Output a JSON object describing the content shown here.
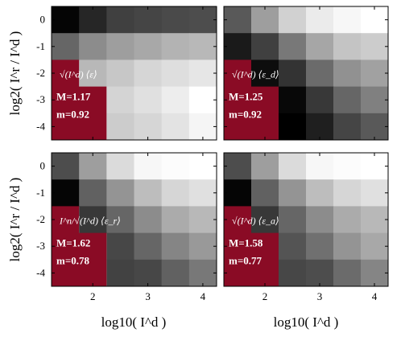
{
  "colors": {
    "overlay": "#8a0b25",
    "overlay_text": "#ffffff",
    "axis": "#000000",
    "background": "#ffffff"
  },
  "shared_axes": {
    "xlabel": "log10( I^d )",
    "ylabel": "log2( I^r / I^d )",
    "x_ticks": [
      "2",
      "3",
      "4"
    ],
    "y_ticks": [
      "0",
      "-1",
      "-2",
      "-3",
      "-4"
    ]
  },
  "chart_data": [
    {
      "type": "heatmap",
      "panel": "top-left",
      "x": [
        1.5,
        2.0,
        2.5,
        3.0,
        3.5,
        4.0
      ],
      "y": [
        0,
        -1,
        -2,
        -3,
        -4
      ],
      "z": [
        [
          0.02,
          0.15,
          0.25,
          0.27,
          0.29,
          0.3
        ],
        [
          0.4,
          0.55,
          0.62,
          0.66,
          0.7,
          0.72
        ],
        [
          null,
          0.72,
          0.78,
          0.84,
          0.87,
          0.9
        ],
        [
          null,
          null,
          0.83,
          0.88,
          0.93,
          1.0
        ],
        [
          null,
          null,
          0.8,
          0.84,
          0.89,
          0.96
        ]
      ],
      "annotation": {
        "formula": "√(I^d) ⟨ε⟩",
        "M": "M=1.17",
        "m": "m=0.92"
      }
    },
    {
      "type": "heatmap",
      "panel": "top-right",
      "x": [
        1.5,
        2.0,
        2.5,
        3.0,
        3.5,
        4.0
      ],
      "y": [
        0,
        -1,
        -2,
        -3,
        -4
      ],
      "z": [
        [
          0.35,
          0.62,
          0.82,
          0.92,
          0.97,
          1.0
        ],
        [
          0.1,
          0.25,
          0.47,
          0.65,
          0.77,
          0.8
        ],
        [
          null,
          0.05,
          0.2,
          0.42,
          0.57,
          0.63
        ],
        [
          null,
          null,
          0.03,
          0.22,
          0.4,
          0.5
        ],
        [
          null,
          null,
          0.0,
          0.12,
          0.27,
          0.35
        ]
      ],
      "annotation": {
        "formula": "√(I^d) ⟨ε_d⟩",
        "M": "M=1.25",
        "m": "m=0.92"
      }
    },
    {
      "type": "heatmap",
      "panel": "bottom-left",
      "x": [
        1.5,
        2.0,
        2.5,
        3.0,
        3.5,
        4.0
      ],
      "y": [
        0,
        -1,
        -2,
        -3,
        -4
      ],
      "z": [
        [
          0.3,
          0.62,
          0.86,
          0.97,
          0.99,
          1.0
        ],
        [
          0.02,
          0.38,
          0.58,
          0.74,
          0.84,
          0.88
        ],
        [
          null,
          0.22,
          0.4,
          0.55,
          0.67,
          0.72
        ],
        [
          null,
          null,
          0.28,
          0.4,
          0.52,
          0.6
        ],
        [
          null,
          null,
          0.26,
          0.28,
          0.38,
          0.47
        ]
      ],
      "annotation": {
        "formula": "I^n/√(I^d) ⟨ε_r⟩",
        "M": "M=1.62",
        "m": "m=0.78"
      }
    },
    {
      "type": "heatmap",
      "panel": "bottom-right",
      "x": [
        1.5,
        2.0,
        2.5,
        3.0,
        3.5,
        4.0
      ],
      "y": [
        0,
        -1,
        -2,
        -3,
        -4
      ],
      "z": [
        [
          0.3,
          0.62,
          0.86,
          0.97,
          0.99,
          1.0
        ],
        [
          0.02,
          0.38,
          0.58,
          0.74,
          0.84,
          0.88
        ],
        [
          null,
          0.22,
          0.4,
          0.55,
          0.67,
          0.72
        ],
        [
          null,
          null,
          0.33,
          0.44,
          0.58,
          0.66
        ],
        [
          null,
          null,
          0.28,
          0.3,
          0.42,
          0.52
        ]
      ],
      "annotation": {
        "formula": "√(I^d) ⟨ε_a⟩",
        "M": "M=1.58",
        "m": "m=0.77"
      }
    }
  ]
}
